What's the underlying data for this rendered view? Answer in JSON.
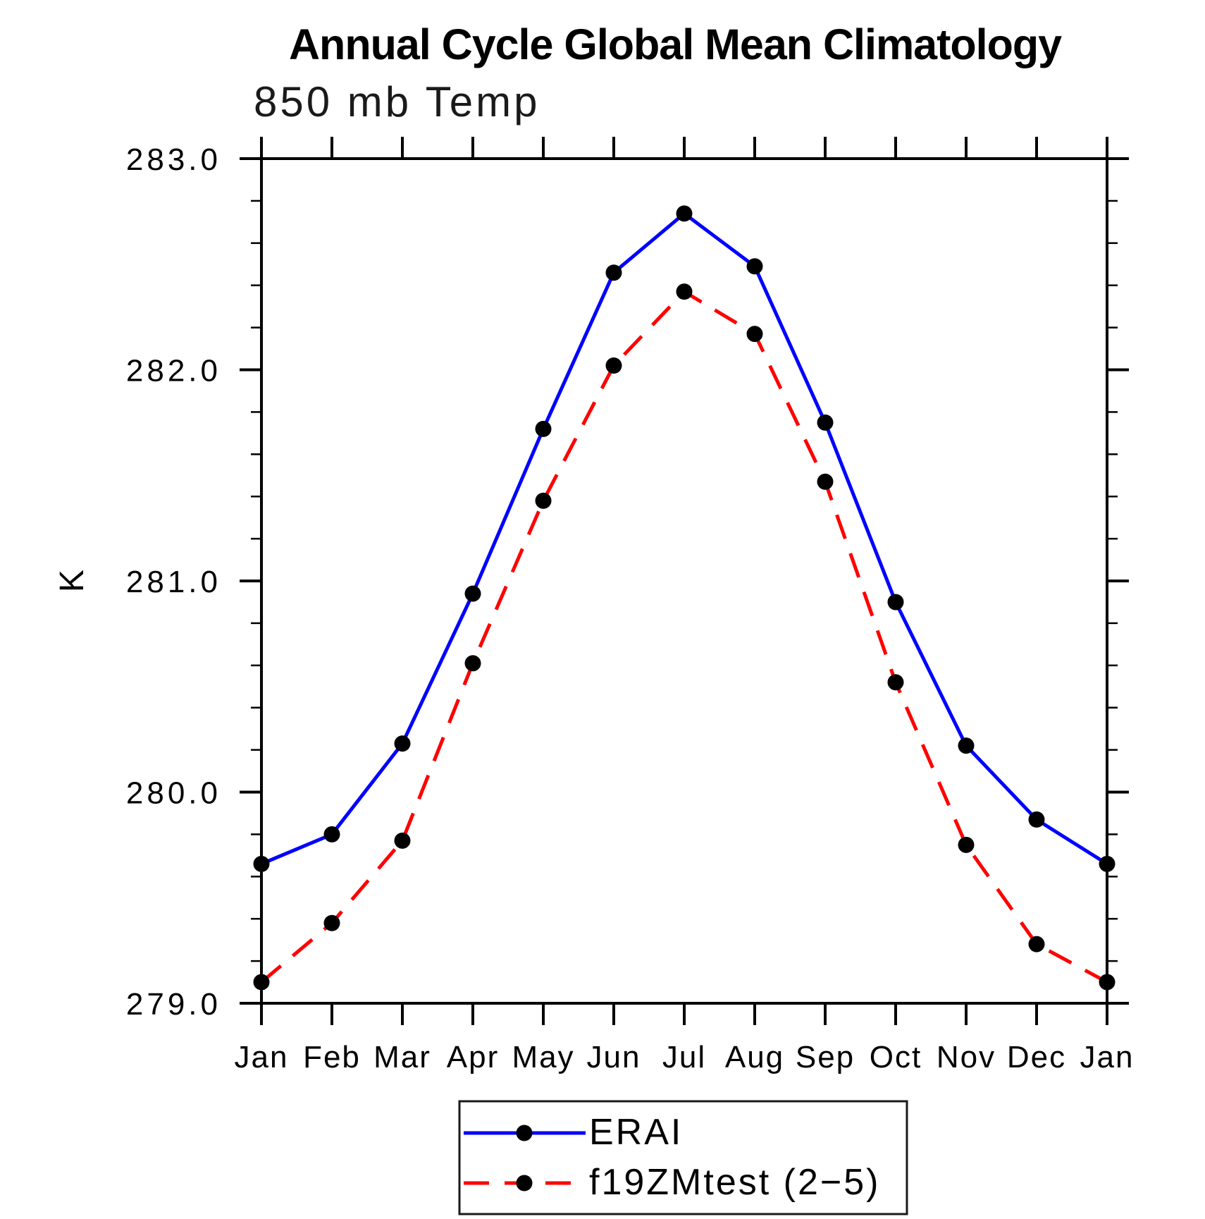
{
  "title": "Annual Cycle Global Mean Climatology",
  "subtitle": "850 mb Temp",
  "ylabel": "K",
  "legend": {
    "position": "bottom",
    "entries": [
      {
        "label": "ERAI",
        "color": "#0000ff",
        "style": "solid",
        "marker_color": "#000000"
      },
      {
        "label": "f19ZMtest (2−5)",
        "color": "#ff0000",
        "style": "dashed",
        "marker_color": "#000000"
      }
    ]
  },
  "chart_data": {
    "type": "line",
    "title": "Annual Cycle Global Mean Climatology",
    "subtitle": "850 mb Temp",
    "xlabel": "",
    "ylabel": "K",
    "categories": [
      "Jan",
      "Feb",
      "Mar",
      "Apr",
      "May",
      "Jun",
      "Jul",
      "Aug",
      "Sep",
      "Oct",
      "Nov",
      "Dec",
      "Jan"
    ],
    "series": [
      {
        "name": "ERAI",
        "color": "#0000ff",
        "style": "solid",
        "marker": "circle",
        "marker_color": "#000000",
        "values": [
          279.66,
          279.8,
          280.23,
          280.94,
          281.72,
          282.46,
          282.74,
          282.49,
          281.75,
          280.9,
          280.22,
          279.87,
          279.66
        ]
      },
      {
        "name": "f19ZMtest (2−5)",
        "color": "#ff0000",
        "style": "dashed",
        "marker": "circle",
        "marker_color": "#000000",
        "values": [
          279.1,
          279.38,
          279.77,
          280.61,
          281.38,
          282.02,
          282.37,
          282.17,
          281.47,
          280.52,
          279.75,
          279.28,
          279.1
        ]
      }
    ],
    "ylim": [
      279.0,
      283.0
    ],
    "ytick_major_step": 1.0,
    "ytick_minor_step": 0.2,
    "ytick_labels": [
      "279.0",
      "280.0",
      "281.0",
      "282.0",
      "283.0"
    ],
    "grid": false,
    "legend_position": "bottom"
  }
}
